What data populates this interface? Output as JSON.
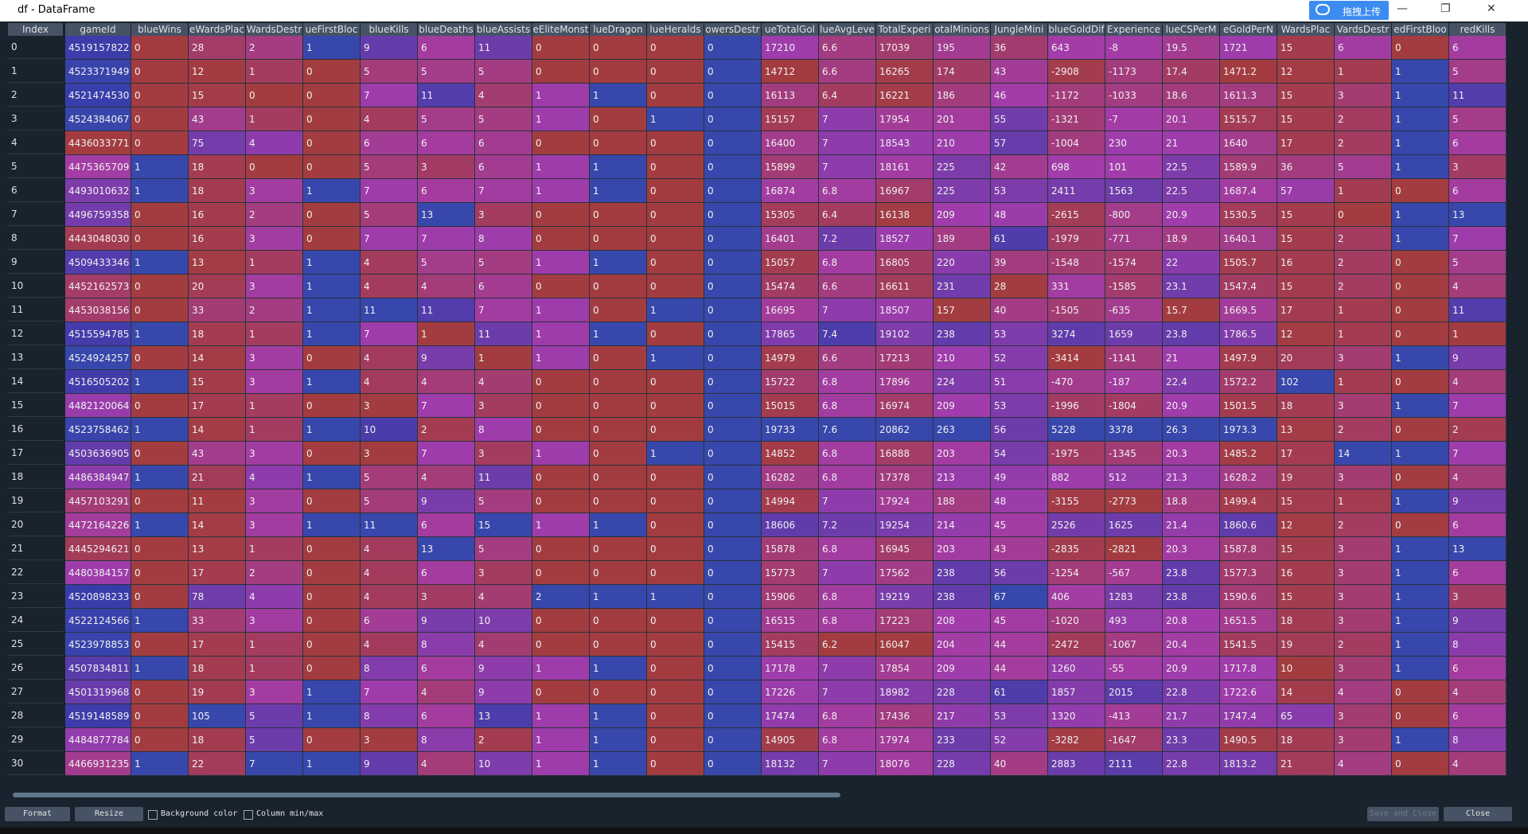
{
  "window": {
    "title": "df - DataFrame"
  },
  "upload_widget": "拖拽上传",
  "table": {
    "index_header": "Index",
    "columns": [
      "gameId",
      "blueWins",
      "eWardsPlac",
      "WardsDestr",
      "ueFirstBloc",
      "blueKills",
      "blueDeaths",
      "blueAssists",
      "eEliteMonst",
      "lueDragon",
      "lueHeralds",
      "owersDestr",
      "ueTotalGol",
      "lueAvgLeve",
      "TotalExperi",
      "otalMinions",
      "JungleMini",
      "blueGoldDif",
      "Experience",
      "lueCSPerM",
      "eGoldPerN",
      "WardsPlac",
      "VardsDestr",
      "edFirstBloo",
      "redKills"
    ],
    "index": [
      0,
      1,
      2,
      3,
      4,
      5,
      6,
      7,
      8,
      9,
      10,
      11,
      12,
      13,
      14,
      15,
      16,
      17,
      18,
      19,
      20,
      21,
      22,
      23,
      24,
      25,
      26,
      27,
      28,
      29,
      30
    ],
    "rows": [
      [
        4519157822,
        0,
        28,
        2,
        1,
        9,
        6,
        11,
        0,
        0,
        0,
        0,
        17210,
        6.6,
        17039,
        195,
        36,
        643,
        -8,
        19.5,
        1721,
        15,
        6,
        0,
        6
      ],
      [
        4523371949,
        0,
        12,
        1,
        0,
        5,
        5,
        5,
        0,
        0,
        0,
        0,
        14712,
        6.6,
        16265,
        174,
        43,
        -2908,
        -1173,
        17.4,
        1471.2,
        12,
        1,
        1,
        5
      ],
      [
        4521474530,
        0,
        15,
        0,
        0,
        7,
        11,
        4,
        1,
        1,
        0,
        0,
        16113,
        6.4,
        16221,
        186,
        46,
        -1172,
        -1033,
        18.6,
        1611.3,
        15,
        3,
        1,
        11
      ],
      [
        4524384067,
        0,
        43,
        1,
        0,
        4,
        5,
        5,
        1,
        0,
        1,
        0,
        15157,
        7,
        17954,
        201,
        55,
        -1321,
        -7,
        20.1,
        1515.7,
        15,
        2,
        1,
        5
      ],
      [
        4436033771,
        0,
        75,
        4,
        0,
        6,
        6,
        6,
        0,
        0,
        0,
        0,
        16400,
        7,
        18543,
        210,
        57,
        -1004,
        230,
        21,
        1640,
        17,
        2,
        1,
        6
      ],
      [
        4475365709,
        1,
        18,
        0,
        0,
        5,
        3,
        6,
        1,
        1,
        0,
        0,
        15899,
        7,
        18161,
        225,
        42,
        698,
        101,
        22.5,
        1589.9,
        36,
        5,
        1,
        3
      ],
      [
        4493010632,
        1,
        18,
        3,
        1,
        7,
        6,
        7,
        1,
        1,
        0,
        0,
        16874,
        6.8,
        16967,
        225,
        53,
        2411,
        1563,
        22.5,
        1687.4,
        57,
        1,
        0,
        6
      ],
      [
        4496759358,
        0,
        16,
        2,
        0,
        5,
        13,
        3,
        0,
        0,
        0,
        0,
        15305,
        6.4,
        16138,
        209,
        48,
        -2615,
        -800,
        20.9,
        1530.5,
        15,
        0,
        1,
        13
      ],
      [
        4443048030,
        0,
        16,
        3,
        0,
        7,
        7,
        8,
        0,
        0,
        0,
        0,
        16401,
        7.2,
        18527,
        189,
        61,
        -1979,
        -771,
        18.9,
        1640.1,
        15,
        2,
        1,
        7
      ],
      [
        4509433346,
        1,
        13,
        1,
        1,
        4,
        5,
        5,
        1,
        1,
        0,
        0,
        15057,
        6.8,
        16805,
        220,
        39,
        -1548,
        -1574,
        22,
        1505.7,
        16,
        2,
        0,
        5
      ],
      [
        4452162573,
        0,
        20,
        3,
        1,
        4,
        4,
        6,
        0,
        0,
        0,
        0,
        15474,
        6.6,
        16611,
        231,
        28,
        331,
        -1585,
        23.1,
        1547.4,
        15,
        2,
        0,
        4
      ],
      [
        4453038156,
        0,
        33,
        2,
        1,
        11,
        11,
        7,
        1,
        0,
        1,
        0,
        16695,
        7,
        18507,
        157,
        40,
        -1505,
        -635,
        15.7,
        1669.5,
        17,
        1,
        0,
        11
      ],
      [
        4515594785,
        1,
        18,
        1,
        1,
        7,
        1,
        11,
        1,
        1,
        0,
        0,
        17865,
        7.4,
        19102,
        238,
        53,
        3274,
        1659,
        23.8,
        1786.5,
        12,
        1,
        0,
        1
      ],
      [
        4524924257,
        0,
        14,
        3,
        0,
        4,
        9,
        1,
        1,
        0,
        1,
        0,
        14979,
        6.6,
        17213,
        210,
        52,
        -3414,
        -1141,
        21,
        1497.9,
        20,
        3,
        1,
        9
      ],
      [
        4516505202,
        1,
        15,
        3,
        1,
        4,
        4,
        4,
        0,
        0,
        0,
        0,
        15722,
        6.8,
        17896,
        224,
        51,
        -470,
        -187,
        22.4,
        1572.2,
        102,
        1,
        0,
        4
      ],
      [
        4482120064,
        0,
        17,
        1,
        0,
        3,
        7,
        3,
        0,
        0,
        0,
        0,
        15015,
        6.8,
        16974,
        209,
        53,
        -1996,
        -1804,
        20.9,
        1501.5,
        18,
        3,
        1,
        7
      ],
      [
        4523758462,
        1,
        14,
        1,
        1,
        10,
        2,
        8,
        0,
        0,
        0,
        0,
        19733,
        7.6,
        20862,
        263,
        56,
        5228,
        3378,
        26.3,
        1973.3,
        13,
        2,
        0,
        2
      ],
      [
        4503636905,
        0,
        43,
        3,
        0,
        3,
        7,
        3,
        1,
        0,
        1,
        0,
        14852,
        6.8,
        16888,
        203,
        54,
        -1975,
        -1345,
        20.3,
        1485.2,
        17,
        14,
        1,
        7
      ],
      [
        4486384947,
        1,
        21,
        4,
        1,
        5,
        4,
        11,
        0,
        0,
        0,
        0,
        16282,
        6.8,
        17378,
        213,
        49,
        882,
        512,
        21.3,
        1628.2,
        19,
        3,
        0,
        4
      ],
      [
        4457103291,
        0,
        11,
        3,
        0,
        5,
        9,
        5,
        0,
        0,
        0,
        0,
        14994,
        7,
        17924,
        188,
        48,
        -3155,
        -2773,
        18.8,
        1499.4,
        15,
        1,
        1,
        9
      ],
      [
        4472164226,
        1,
        14,
        3,
        1,
        11,
        6,
        15,
        1,
        1,
        0,
        0,
        18606,
        7.2,
        19254,
        214,
        45,
        2526,
        1625,
        21.4,
        1860.6,
        12,
        2,
        0,
        6
      ],
      [
        4445294621,
        0,
        13,
        1,
        0,
        4,
        13,
        5,
        0,
        0,
        0,
        0,
        15878,
        6.8,
        16945,
        203,
        43,
        -2835,
        -2821,
        20.3,
        1587.8,
        15,
        3,
        1,
        13
      ],
      [
        4480384157,
        0,
        17,
        2,
        0,
        4,
        6,
        3,
        0,
        0,
        0,
        0,
        15773,
        7,
        17562,
        238,
        56,
        -1254,
        -567,
        23.8,
        1577.3,
        16,
        3,
        1,
        6
      ],
      [
        4520898233,
        0,
        78,
        4,
        0,
        4,
        3,
        4,
        2,
        1,
        1,
        0,
        15906,
        6.8,
        19219,
        238,
        67,
        406,
        1283,
        23.8,
        1590.6,
        15,
        3,
        1,
        3
      ],
      [
        4522124566,
        1,
        33,
        3,
        0,
        6,
        9,
        10,
        0,
        0,
        0,
        0,
        16515,
        6.8,
        17223,
        208,
        45,
        -1020,
        493,
        20.8,
        1651.5,
        18,
        3,
        1,
        9
      ],
      [
        4523978853,
        0,
        17,
        1,
        0,
        4,
        8,
        4,
        0,
        0,
        0,
        0,
        15415,
        6.2,
        16047,
        204,
        44,
        -2472,
        -1067,
        20.4,
        1541.5,
        19,
        2,
        1,
        8
      ],
      [
        4507834811,
        1,
        18,
        1,
        0,
        8,
        6,
        9,
        1,
        1,
        0,
        0,
        17178,
        7,
        17854,
        209,
        44,
        1260,
        -55,
        20.9,
        1717.8,
        10,
        3,
        1,
        6
      ],
      [
        4501319968,
        0,
        19,
        3,
        1,
        7,
        4,
        9,
        0,
        0,
        0,
        0,
        17226,
        7,
        18982,
        228,
        61,
        1857,
        2015,
        22.8,
        1722.6,
        14,
        4,
        0,
        4
      ],
      [
        4519148589,
        0,
        105,
        5,
        1,
        8,
        6,
        13,
        1,
        1,
        0,
        0,
        17474,
        6.8,
        17436,
        217,
        53,
        1320,
        -413,
        21.7,
        1747.4,
        65,
        3,
        0,
        6
      ],
      [
        4484877784,
        0,
        18,
        5,
        0,
        3,
        8,
        2,
        1,
        1,
        0,
        0,
        14905,
        6.8,
        17974,
        233,
        52,
        -3282,
        -1647,
        23.3,
        1490.5,
        18,
        3,
        1,
        8
      ],
      [
        4466931235,
        1,
        22,
        7,
        1,
        9,
        4,
        10,
        1,
        1,
        0,
        0,
        18132,
        7,
        18076,
        228,
        40,
        2883,
        2111,
        22.8,
        1813.2,
        21,
        4,
        0,
        4
      ]
    ]
  },
  "toolbar": {
    "format": "Format",
    "resize": "Resize",
    "background_color": "Background color",
    "column_minmax": "Column min/max",
    "save_close": "Save and Close",
    "close": "Close"
  }
}
